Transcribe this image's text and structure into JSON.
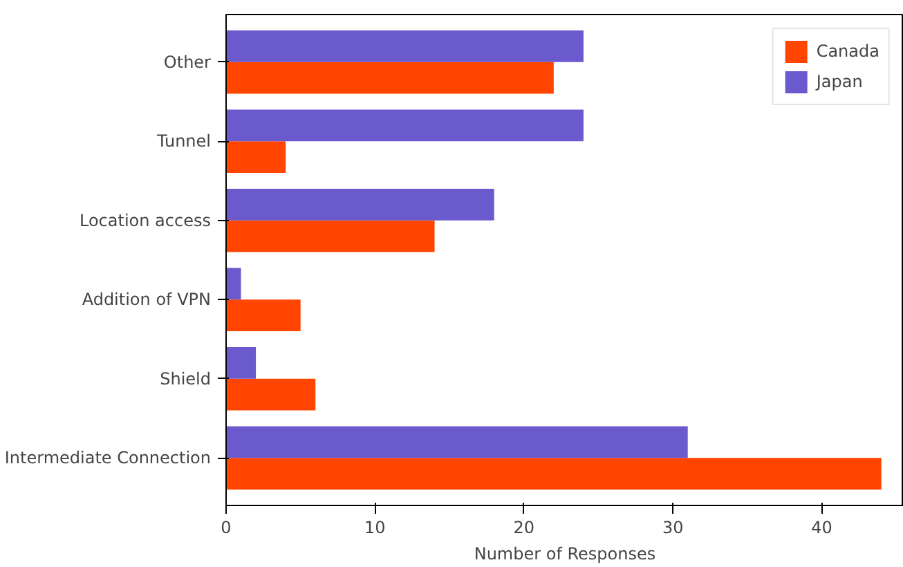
{
  "chart_data": {
    "type": "bar",
    "orientation": "horizontal",
    "xlabel": "Number of Responses",
    "categories": [
      "Other",
      "Tunnel",
      "Location access",
      "Addition of VPN",
      "Shield",
      "Intermediate Connection"
    ],
    "series": [
      {
        "name": "Canada",
        "color": "#ff4500",
        "values": [
          22,
          4,
          14,
          5,
          6,
          44
        ]
      },
      {
        "name": "Japan",
        "color": "#6a5acd",
        "values": [
          24,
          24,
          18,
          1,
          2,
          31
        ]
      }
    ],
    "xlim": [
      0,
      45.5
    ],
    "xticks": [
      0,
      10,
      20,
      30,
      40
    ],
    "grid": false,
    "legend": "top right"
  }
}
